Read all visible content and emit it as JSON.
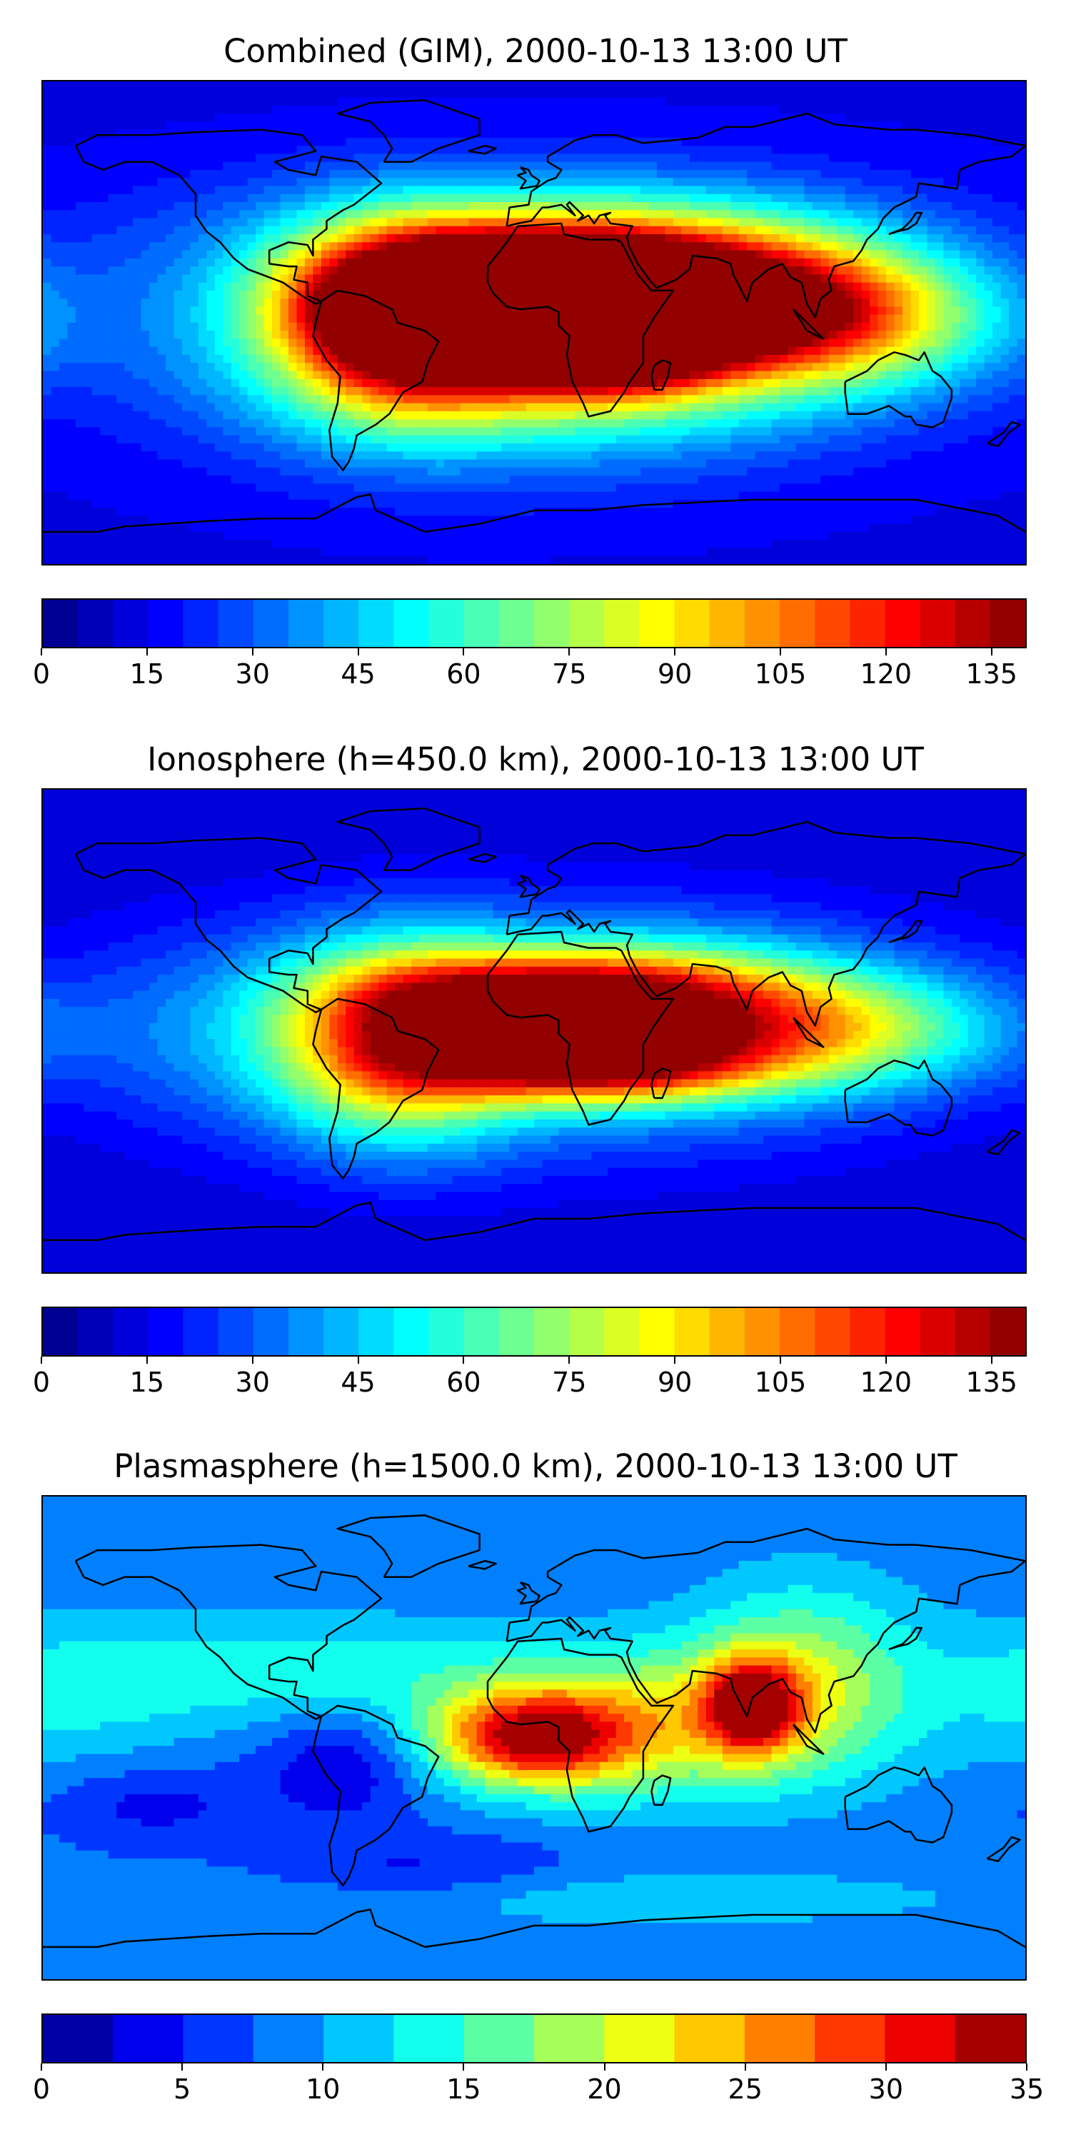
{
  "chart_data": [
    {
      "type": "heatmap",
      "title": "Combined (GIM), 2000-10-13 13:00 UT",
      "colorbar": {
        "min": 0,
        "max": 140,
        "levels": 28,
        "ticks": [
          0,
          15,
          30,
          45,
          60,
          75,
          90,
          105,
          120,
          135
        ]
      },
      "background_value": 14,
      "blobs": [
        {
          "lon": 15,
          "lat": 5,
          "value": 128,
          "sx": 55,
          "sy": 22
        },
        {
          "lon": 30,
          "lat": 2,
          "value": 135,
          "sx": 22,
          "sy": 14
        },
        {
          "lon": -15,
          "lat": 8,
          "value": 115,
          "sx": 40,
          "sy": 15
        },
        {
          "lon": -50,
          "lat": 0,
          "value": 90,
          "sx": 30,
          "sy": 25
        },
        {
          "lon": 75,
          "lat": 10,
          "value": 80,
          "sx": 45,
          "sy": 18
        },
        {
          "lon": 120,
          "lat": 0,
          "value": 60,
          "sx": 40,
          "sy": 18
        },
        {
          "lon": 0,
          "lat": -20,
          "value": 55,
          "sx": 80,
          "sy": 25
        },
        {
          "lon": 0,
          "lat": 30,
          "value": 42,
          "sx": 90,
          "sy": 20
        },
        {
          "lon": -120,
          "lat": 0,
          "value": 22,
          "sx": 40,
          "sy": 25
        }
      ]
    },
    {
      "type": "heatmap",
      "title": "Ionosphere  (h=450.0 km), 2000-10-13 13:00 UT",
      "colorbar": {
        "min": 0,
        "max": 140,
        "levels": 28,
        "ticks": [
          0,
          15,
          30,
          45,
          60,
          75,
          90,
          105,
          120,
          135
        ]
      },
      "background_value": 10,
      "blobs": [
        {
          "lon": 10,
          "lat": 12,
          "value": 95,
          "sx": 45,
          "sy": 12
        },
        {
          "lon": 20,
          "lat": -12,
          "value": 95,
          "sx": 40,
          "sy": 10
        },
        {
          "lon": -50,
          "lat": -5,
          "value": 80,
          "sx": 30,
          "sy": 25
        },
        {
          "lon": 60,
          "lat": 5,
          "value": 60,
          "sx": 50,
          "sy": 18
        },
        {
          "lon": 120,
          "lat": 0,
          "value": 45,
          "sx": 40,
          "sy": 15
        },
        {
          "lon": 0,
          "lat": 0,
          "value": 55,
          "sx": 95,
          "sy": 30
        },
        {
          "lon": -120,
          "lat": 0,
          "value": 18,
          "sx": 40,
          "sy": 25
        }
      ]
    },
    {
      "type": "heatmap",
      "title": "Plasmasphere (h=1500.0 km), 2000-10-13 13:00 UT",
      "colorbar": {
        "min": 0,
        "max": 35,
        "levels": 14,
        "ticks": [
          0,
          5,
          10,
          15,
          20,
          25,
          30,
          35
        ]
      },
      "background_value": 8,
      "blobs": [
        {
          "lon": 0,
          "lat": 0,
          "value": 28,
          "sx": 25,
          "sy": 12
        },
        {
          "lon": 80,
          "lat": 12,
          "value": 28,
          "sx": 12,
          "sy": 12
        },
        {
          "lon": 40,
          "lat": 5,
          "value": 20,
          "sx": 50,
          "sy": 20
        },
        {
          "lon": 100,
          "lat": 25,
          "value": 17,
          "sx": 30,
          "sy": 25
        },
        {
          "lon": -90,
          "lat": 25,
          "value": 14,
          "sx": 60,
          "sy": 15
        },
        {
          "lon": -170,
          "lat": 15,
          "value": 12,
          "sx": 30,
          "sy": 20
        },
        {
          "lon": -70,
          "lat": -10,
          "value": 2,
          "sx": 20,
          "sy": 15
        },
        {
          "lon": -140,
          "lat": -25,
          "value": 4,
          "sx": 25,
          "sy": 10
        },
        {
          "lon": -40,
          "lat": -50,
          "value": 4,
          "sx": 40,
          "sy": 10
        },
        {
          "lon": 30,
          "lat": -60,
          "value": 12,
          "sx": 100,
          "sy": 8
        }
      ]
    }
  ]
}
